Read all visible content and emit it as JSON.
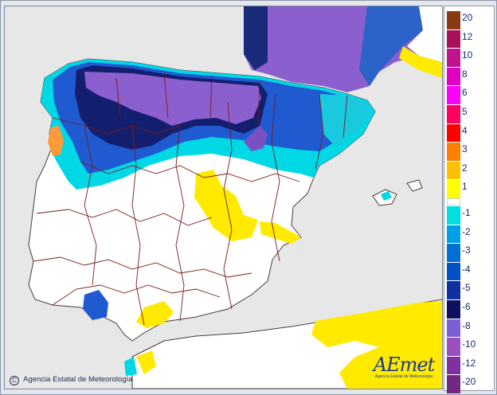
{
  "legend": {
    "entries": [
      {
        "label": "20",
        "color": "#8a3a12"
      },
      {
        "label": "12",
        "color": "#a8105a"
      },
      {
        "label": "10",
        "color": "#c0148f"
      },
      {
        "label": "8",
        "color": "#e000c0"
      },
      {
        "label": "6",
        "color": "#ff00ff"
      },
      {
        "label": "5",
        "color": "#ff0060"
      },
      {
        "label": "4",
        "color": "#ff0000"
      },
      {
        "label": "3",
        "color": "#ff8000"
      },
      {
        "label": "2",
        "color": "#ffc000"
      },
      {
        "label": "1",
        "color": "#ffff00"
      },
      {
        "label": "-1",
        "color": "#00e0e0"
      },
      {
        "label": "-2",
        "color": "#00a0e6"
      },
      {
        "label": "-3",
        "color": "#0070d8"
      },
      {
        "label": "-4",
        "color": "#0050c8"
      },
      {
        "label": "-5",
        "color": "#1030a0"
      },
      {
        "label": "-6",
        "color": "#101060"
      },
      {
        "label": "-8",
        "color": "#7a60d0"
      },
      {
        "label": "-10",
        "color": "#9a50c0"
      },
      {
        "label": "-12",
        "color": "#8030a0"
      },
      {
        "label": "-20",
        "color": "#702880"
      }
    ]
  },
  "colors": {
    "sea": "#e7e7e7",
    "land_neutral": "#ffffff",
    "borders": "#7a1a1a",
    "coast": "#4a3a3a"
  },
  "footer": {
    "copyright_symbol": "C",
    "copyright_text": "Agencia Estatal de Meteorología"
  },
  "logo": {
    "wordmark": "AEmet",
    "subtitle": "Agencia Estatal de Meteorología"
  }
}
